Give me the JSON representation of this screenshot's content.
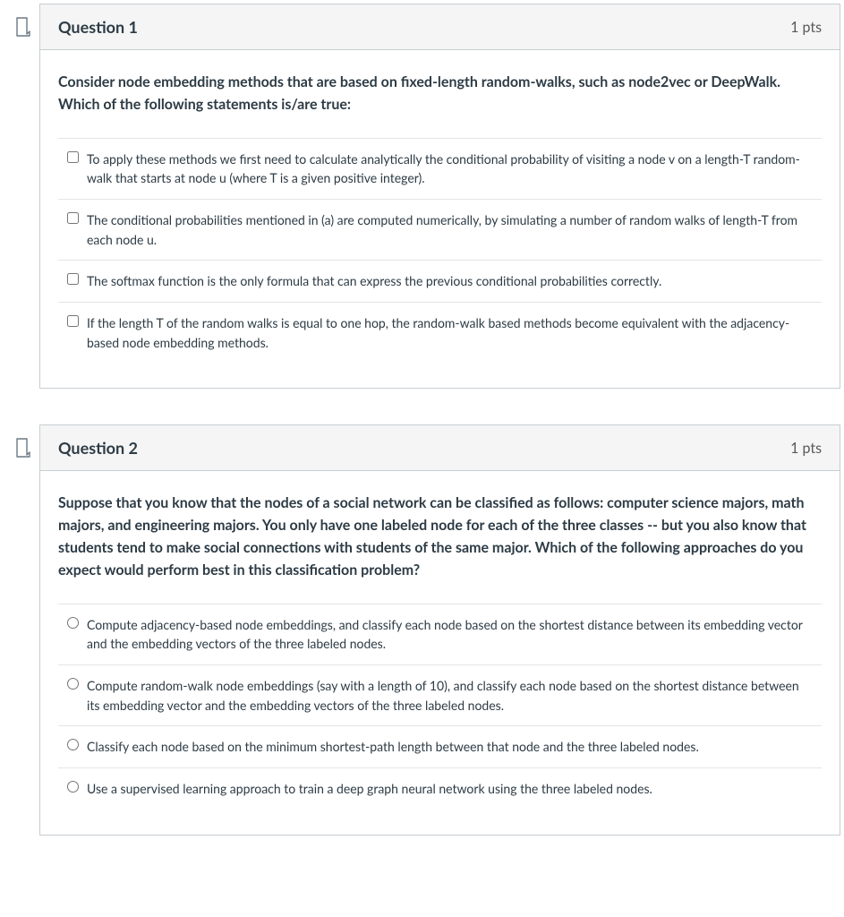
{
  "colors": {
    "card_border": "#c7cdd1",
    "header_bg": "#f5f5f5",
    "text_primary": "#2d3b45",
    "text_muted": "#595959",
    "divider": "#e5e5e5",
    "marker_stroke": "#6a7883",
    "marker_fill": "#ffffff"
  },
  "questions": [
    {
      "title": "Question 1",
      "points": "1 pts",
      "input_type": "checkbox",
      "prompt": "Consider node embedding methods that are based on fixed-length random-walks, such as node2vec or DeepWalk. Which of the following statements is/are true:",
      "answers": [
        "To apply these methods we first need to calculate analytically the conditional probability of visiting a node v on a length-T random-walk that starts at node u (where T is a given positive integer).",
        "The conditional probabilities mentioned in (a) are computed numerically, by simulating a number of random walks of length-T from each node u.",
        "The softmax function is the only formula that can express the previous conditional probabilities correctly.",
        "If the length T of the random walks is equal to one hop, the random-walk based methods become equivalent with the adjacency-based node embedding methods."
      ]
    },
    {
      "title": "Question 2",
      "points": "1 pts",
      "input_type": "radio",
      "prompt": "Suppose that you know that the nodes of a social network can be classified as follows: computer science majors, math majors, and engineering majors. You only have one labeled node for each of the three classes -- but you also know that students tend to make social connections with students of the same major. Which of the following approaches do you expect would perform best in this classification problem?",
      "answers": [
        "Compute adjacency-based node embeddings, and classify each node based on the shortest distance between its embedding vector and the embedding vectors of the three labeled nodes.",
        "Compute random-walk node embeddings (say with a length of 10), and classify each node based on the shortest distance between its embedding vector and the embedding vectors of the three labeled nodes.",
        "Classify each node based on the minimum shortest-path length between that node and the three labeled nodes.",
        "Use a supervised learning approach to train a deep graph neural network using the three labeled nodes."
      ]
    }
  ]
}
